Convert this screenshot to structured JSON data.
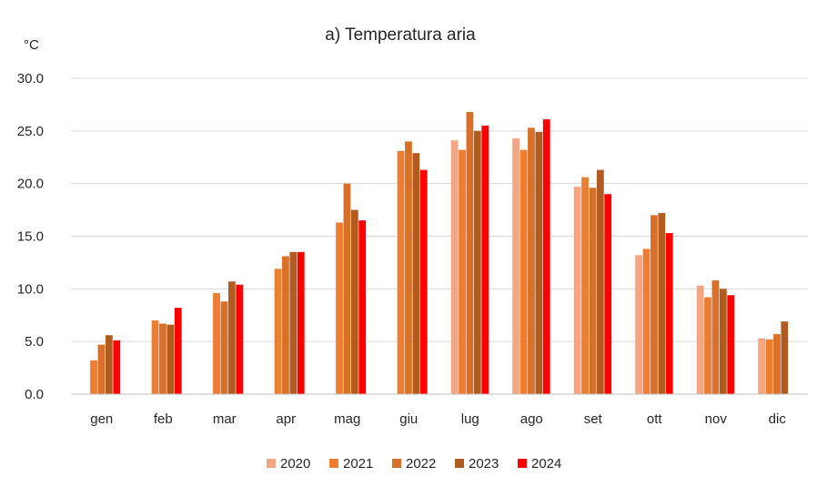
{
  "chart_data": {
    "type": "bar",
    "title": "a) Temperatura aria",
    "unit_label": "°C",
    "xlabel": "",
    "ylabel": "",
    "ylim": [
      0,
      30
    ],
    "yticks": [
      0,
      5,
      10,
      15,
      20,
      25,
      30
    ],
    "ytick_labels": [
      "0.0",
      "5.0",
      "10.0",
      "15.0",
      "20.0",
      "25.0",
      "30.0"
    ],
    "grid": true,
    "legend_position": "bottom",
    "categories": [
      "gen",
      "feb",
      "mar",
      "apr",
      "mag",
      "giu",
      "lug",
      "ago",
      "set",
      "ott",
      "nov",
      "dic"
    ],
    "series": [
      {
        "name": "2020",
        "color": "#f4a582",
        "values": [
          null,
          null,
          null,
          null,
          null,
          null,
          24.1,
          24.3,
          19.7,
          13.2,
          10.3,
          5.3
        ]
      },
      {
        "name": "2021",
        "color": "#ed7d31",
        "values": [
          3.2,
          7.0,
          9.6,
          11.9,
          16.3,
          23.1,
          23.2,
          23.2,
          20.6,
          13.8,
          9.2,
          5.2
        ]
      },
      {
        "name": "2022",
        "color": "#d9702a",
        "values": [
          4.7,
          6.7,
          8.8,
          13.1,
          20.0,
          24.0,
          26.8,
          25.3,
          19.6,
          17.0,
          10.8,
          5.7
        ]
      },
      {
        "name": "2023",
        "color": "#b25b1f",
        "values": [
          5.6,
          6.6,
          10.7,
          13.5,
          17.5,
          22.9,
          25.0,
          24.9,
          21.3,
          17.2,
          10.0,
          6.9
        ]
      },
      {
        "name": "2024",
        "color": "#ff0000",
        "values": [
          5.1,
          8.2,
          10.4,
          13.5,
          16.5,
          21.3,
          25.5,
          26.1,
          19.0,
          15.3,
          9.4,
          null
        ]
      }
    ]
  }
}
